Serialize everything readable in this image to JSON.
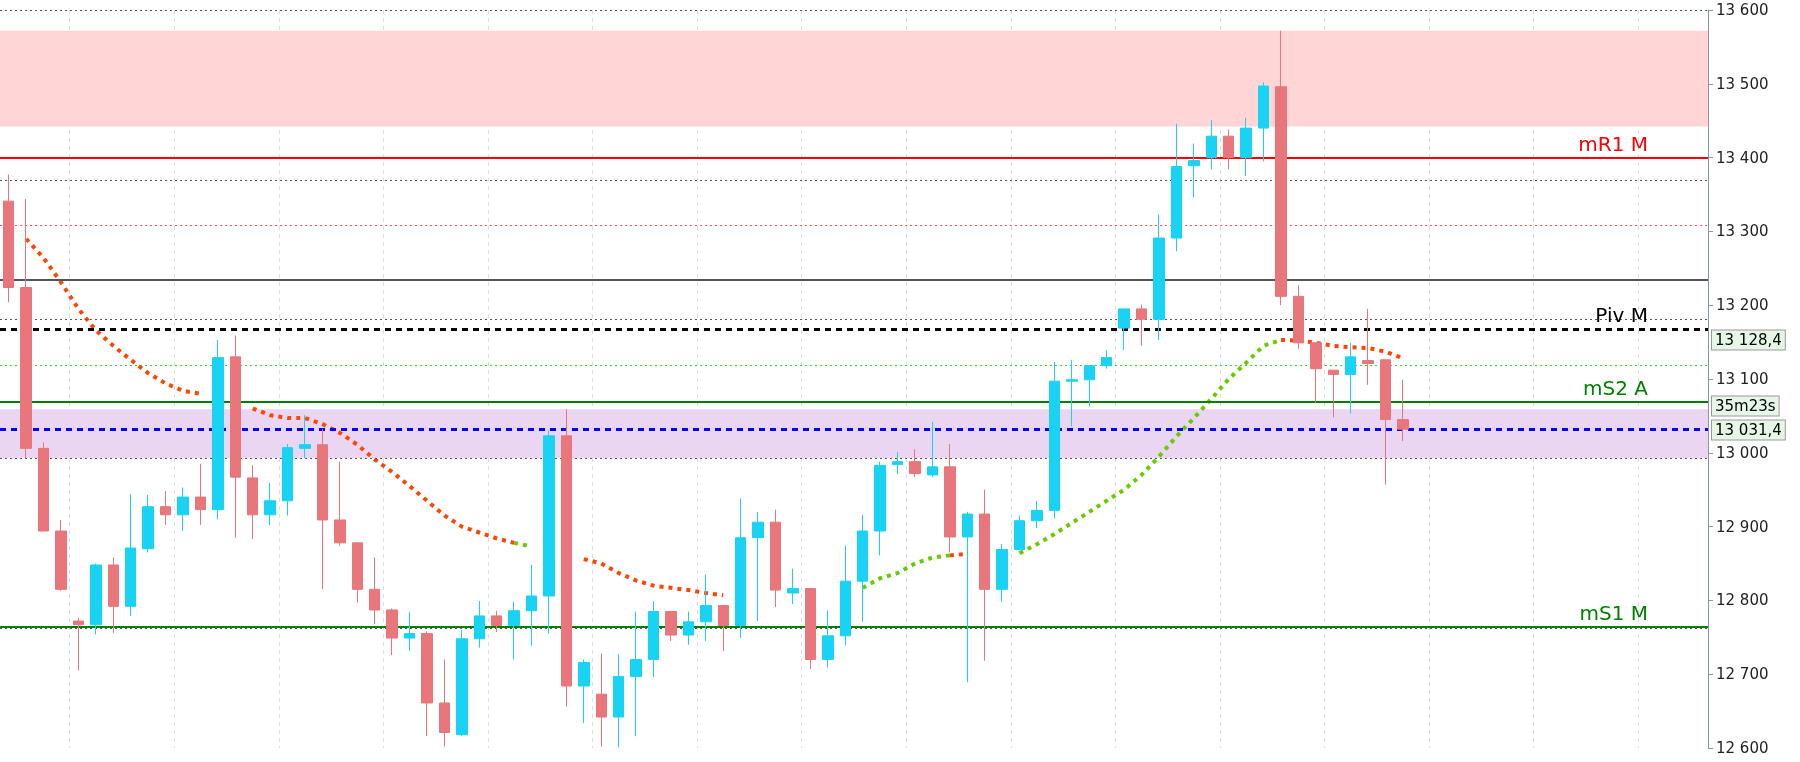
{
  "chart_data": {
    "type": "candlestick",
    "categories": [
      null,
      null,
      null,
      null,
      null,
      null,
      null,
      null,
      null,
      null,
      null,
      null,
      null,
      null,
      null,
      null,
      null,
      null,
      null,
      null,
      null,
      null,
      null,
      null,
      null,
      null,
      null,
      null,
      null,
      null,
      null,
      null,
      null,
      null,
      null,
      null,
      null,
      null,
      null,
      null,
      null,
      null,
      null,
      null,
      null,
      null,
      null,
      null,
      null,
      null,
      null,
      null,
      null,
      null,
      null,
      null,
      null,
      null,
      null,
      null,
      null,
      null,
      null,
      null,
      null,
      null,
      null,
      null,
      null,
      null,
      null,
      null,
      null,
      null,
      null,
      null,
      null,
      null,
      null,
      null,
      null,
      null,
      null,
      null,
      null,
      null,
      null,
      null,
      null,
      null,
      null,
      null,
      null,
      null,
      null,
      null,
      null,
      null
    ],
    "series": [
      {
        "type": "candlestick",
        "ohlc": [
          [
            13341,
            13377,
            13204,
            13224
          ],
          [
            13224,
            13344,
            12993,
            13006
          ],
          [
            13006,
            13014,
            12894,
            12894
          ],
          [
            12894,
            12909,
            12813,
            12815
          ],
          [
            12772,
            12776,
            12705,
            12767
          ],
          [
            12767,
            12850,
            12754,
            12848
          ],
          [
            12848,
            12858,
            12756,
            12792
          ],
          [
            12792,
            12944,
            12779,
            12871
          ],
          [
            12870,
            12943,
            12865,
            12927
          ],
          [
            12927,
            12948,
            12902,
            12916
          ],
          [
            12916,
            12953,
            12894,
            12940
          ],
          [
            12940,
            12985,
            12902,
            12923
          ],
          [
            12923,
            13153,
            12910,
            13129
          ],
          [
            13130,
            13159,
            12885,
            12967
          ],
          [
            12966,
            12983,
            12883,
            12916
          ],
          [
            12916,
            12959,
            12902,
            12935
          ],
          [
            12935,
            13012,
            12915,
            13007
          ],
          [
            13006,
            13051,
            12993,
            13011
          ],
          [
            13011,
            13032,
            12815,
            12909
          ],
          [
            12909,
            12988,
            12874,
            12878
          ],
          [
            12878,
            12878,
            12797,
            12815
          ],
          [
            12815,
            12858,
            12768,
            12787
          ],
          [
            12787,
            12789,
            12726,
            12749
          ],
          [
            12749,
            12784,
            12732,
            12755
          ],
          [
            12755,
            12758,
            12616,
            12661
          ],
          [
            12661,
            12720,
            12602,
            12621
          ],
          [
            12618,
            12760,
            12616,
            12748
          ],
          [
            12748,
            12799,
            12736,
            12779
          ],
          [
            12779,
            12786,
            12757,
            12766
          ],
          [
            12766,
            12798,
            12720,
            12786
          ],
          [
            12786,
            12848,
            12739,
            12806
          ],
          [
            12806,
            13030,
            12755,
            13023
          ],
          [
            13023,
            13059,
            12656,
            12684
          ],
          [
            12684,
            12720,
            12634,
            12716
          ],
          [
            12673,
            12728,
            12602,
            12642
          ],
          [
            12642,
            12727,
            12601,
            12697
          ],
          [
            12697,
            12785,
            12616,
            12720
          ],
          [
            12720,
            12799,
            12696,
            12785
          ],
          [
            12785,
            12785,
            12745,
            12753
          ],
          [
            12753,
            12785,
            12740,
            12771
          ],
          [
            12771,
            12835,
            12745,
            12793
          ],
          [
            12793,
            12793,
            12731,
            12766
          ],
          [
            12766,
            12938,
            12749,
            12885
          ],
          [
            12885,
            12920,
            12772,
            12906
          ],
          [
            12906,
            12923,
            12791,
            12814
          ],
          [
            12810,
            12843,
            12795,
            12816
          ],
          [
            12816,
            12816,
            12707,
            12720
          ],
          [
            12720,
            12786,
            12709,
            12752
          ],
          [
            12752,
            12874,
            12739,
            12826
          ],
          [
            12826,
            12916,
            12771,
            12894
          ],
          [
            12894,
            12988,
            12861,
            12983
          ],
          [
            12984,
            13001,
            12971,
            12988
          ],
          [
            12988,
            13005,
            12967,
            12972
          ],
          [
            12970,
            13042,
            12967,
            12981
          ],
          [
            12981,
            13012,
            12865,
            12886
          ],
          [
            12886,
            12920,
            12689,
            12917
          ],
          [
            12917,
            12950,
            12718,
            12815
          ],
          [
            12815,
            12876,
            12798,
            12869
          ],
          [
            12869,
            12915,
            12869,
            12908
          ],
          [
            12908,
            12935,
            12898,
            12922
          ],
          [
            12922,
            13123,
            12911,
            13097
          ],
          [
            13097,
            13126,
            13036,
            13099
          ],
          [
            13099,
            13118,
            13063,
            13118
          ],
          [
            13118,
            13139,
            13114,
            13129
          ],
          [
            13169,
            13195,
            13139,
            13195
          ],
          [
            13195,
            13201,
            13145,
            13181
          ],
          [
            13181,
            13323,
            13153,
            13291
          ],
          [
            13291,
            13446,
            13273,
            13388
          ],
          [
            13389,
            13419,
            13346,
            13396
          ],
          [
            13400,
            13451,
            13384,
            13429
          ],
          [
            13429,
            13438,
            13384,
            13400
          ],
          [
            13400,
            13454,
            13375,
            13440
          ],
          [
            13440,
            13502,
            13395,
            13497
          ],
          [
            13496,
            13572,
            13200,
            13212
          ],
          [
            13212,
            13227,
            13141,
            13149
          ],
          [
            13149,
            13149,
            13068,
            13114
          ],
          [
            13112,
            13112,
            13048,
            13106
          ],
          [
            13106,
            13149,
            13053,
            13130
          ],
          [
            13125,
            13195,
            13092,
            13121
          ],
          [
            13126,
            13126,
            12957,
            13045
          ],
          [
            13045,
            13099,
            13016,
            13032
          ],
          null,
          null,
          null,
          null,
          null,
          null,
          null,
          null,
          null,
          null,
          null,
          null,
          null,
          null,
          null,
          null,
          null
        ],
        "colors": [
          "#e8767a",
          "#e8767a",
          "#e8767a",
          "#e8767a",
          "#e8767a",
          "#19d3f5",
          "#e8767a",
          "#19d3f5",
          "#19d3f5",
          "#e8767a",
          "#19d3f5",
          "#e8767a",
          "#19d3f5",
          "#e8767a",
          "#e8767a",
          "#19d3f5",
          "#19d3f5",
          "#19d3f5",
          "#e8767a",
          "#e8767a",
          "#e8767a",
          "#e8767a",
          "#e8767a",
          "#19d3f5",
          "#e8767a",
          "#e8767a",
          "#19d3f5",
          "#19d3f5",
          "#e8767a",
          "#19d3f5",
          "#19d3f5",
          "#19d3f5",
          "#e8767a",
          "#19d3f5",
          "#e8767a",
          "#19d3f5",
          "#19d3f5",
          "#19d3f5",
          "#e8767a",
          "#19d3f5",
          "#19d3f5",
          "#e8767a",
          "#19d3f5",
          "#19d3f5",
          "#e8767a",
          "#19d3f5",
          "#e8767a",
          "#19d3f5",
          "#19d3f5",
          "#19d3f5",
          "#19d3f5",
          "#19d3f5",
          "#e8767a",
          "#19d3f5",
          "#e8767a",
          "#19d3f5",
          "#e8767a",
          "#19d3f5",
          "#19d3f5",
          "#19d3f5",
          "#19d3f5",
          "#19d3f5",
          "#19d3f5",
          "#19d3f5",
          "#19d3f5",
          "#e8767a",
          "#19d3f5",
          "#19d3f5",
          "#19d3f5",
          "#19d3f5",
          "#e8767a",
          "#19d3f5",
          "#19d3f5",
          "#e8767a",
          "#e8767a",
          "#e8767a",
          "#e8767a",
          "#19d3f5",
          "#e8767a",
          "#e8767a",
          "#e8767a",
          null,
          null,
          null,
          null,
          null,
          null,
          null,
          null,
          null,
          null,
          null,
          null,
          null,
          null,
          null,
          null,
          null
        ]
      },
      {
        "type": "line",
        "color": "#ff4500",
        "line_style": "dotted",
        "values": [
          null,
          13290,
          13264,
          13231,
          13195,
          13166,
          13145,
          13126,
          13108,
          13094,
          13084,
          13080,
          null,
          null,
          13060,
          13051,
          13047,
          13047,
          13039,
          13027,
          13011,
          12991,
          12974,
          12955,
          12935,
          12915,
          12900,
          12892,
          12884,
          12878,
          null,
          null,
          null,
          12856,
          12850,
          12837,
          12827,
          12820,
          12817,
          12814,
          12810,
          12807,
          null,
          null,
          null,
          null,
          null,
          null,
          null,
          null,
          null,
          null,
          null,
          null,
          12861,
          12863,
          null,
          null,
          null,
          null,
          null,
          null,
          null,
          null,
          null,
          null,
          null,
          null,
          null,
          null,
          null,
          null,
          null,
          13153,
          13152,
          13149,
          13145,
          13143,
          13142,
          13137,
          13128,
          null,
          null,
          null,
          null,
          null,
          null,
          null,
          null,
          null,
          null,
          null,
          null,
          null,
          null,
          null,
          null,
          null
        ]
      },
      {
        "type": "line",
        "color": "#66cc00",
        "line_style": "dotted",
        "values": [
          null,
          null,
          null,
          null,
          null,
          null,
          null,
          null,
          null,
          null,
          null,
          null,
          null,
          null,
          null,
          null,
          null,
          null,
          null,
          null,
          null,
          null,
          null,
          null,
          null,
          null,
          null,
          null,
          null,
          12878,
          12873,
          null,
          null,
          null,
          null,
          null,
          null,
          null,
          null,
          null,
          null,
          null,
          null,
          null,
          null,
          null,
          null,
          null,
          null,
          12817,
          12830,
          12837,
          12850,
          12858,
          12861,
          null,
          null,
          null,
          12864,
          12876,
          12890,
          12905,
          12920,
          12935,
          12950,
          12970,
          12995,
          13022,
          13047,
          13073,
          13100,
          13122,
          13145,
          13153,
          null,
          null,
          null,
          null,
          null,
          null,
          null,
          null,
          null,
          null,
          null,
          null,
          null,
          null,
          null,
          null,
          null,
          null,
          null,
          null,
          null,
          null,
          null,
          null
        ]
      }
    ],
    "ylim": [
      12600,
      13600
    ],
    "yticks": [
      {
        "value": 12600,
        "label": "12 600"
      },
      {
        "value": 12700,
        "label": "12 700"
      },
      {
        "value": 12800,
        "label": "12 800"
      },
      {
        "value": 12900,
        "label": "12 900"
      },
      {
        "value": 13000,
        "label": "13 000"
      },
      {
        "value": 13100,
        "label": "13 100"
      },
      {
        "value": 13200,
        "label": "13 200"
      },
      {
        "value": 13300,
        "label": "13 300"
      },
      {
        "value": 13400,
        "label": "13 400"
      },
      {
        "value": 13500,
        "label": "13 500"
      },
      {
        "value": 13600,
        "label": "13 600"
      }
    ],
    "ref_lines": [
      {
        "axis": "y",
        "value": 13600,
        "color": "#555555",
        "line_style": "dotted"
      },
      {
        "axis": "y",
        "value": 13369,
        "color": "#555555",
        "line_style": "dotted"
      },
      {
        "axis": "y",
        "value": 13181,
        "color": "#555555",
        "line_style": "dotted"
      },
      {
        "axis": "y",
        "value": 12993,
        "color": "#555555",
        "line_style": "dotted"
      },
      {
        "axis": "y",
        "value": 12762,
        "color": "#555555",
        "line_style": "dotted"
      },
      {
        "axis": "y",
        "value": 13309,
        "color": "#ff4d4d",
        "line_style": "dotted"
      },
      {
        "axis": "y",
        "value": 13235,
        "color": "#555555",
        "line_style": "solid"
      },
      {
        "axis": "y",
        "value": 13118,
        "color": "#33cc33",
        "line_style": "dotted"
      },
      {
        "axis": "y",
        "value": 13031.4,
        "color": "#0000ff",
        "line_style": "dashed"
      },
      {
        "axis": "y",
        "value": 13400,
        "label": "mR1 M",
        "color": "#ff0000",
        "line_style": "solid"
      },
      {
        "axis": "y",
        "value": 13168,
        "label": "Piv M",
        "color": "#000000",
        "line_style": "dashed"
      },
      {
        "axis": "y",
        "value": 13069,
        "label": "mS2 A",
        "color": "#008000",
        "line_style": "solid"
      },
      {
        "axis": "y",
        "value": 12764,
        "label": "mS1 M",
        "color": "#008000",
        "line_style": "solid"
      }
    ],
    "bands": [
      {
        "axis": "y",
        "from": 13442,
        "to": 13572,
        "color": "#ffd5d5"
      },
      {
        "axis": "y",
        "from": 12993,
        "to": 13059,
        "color": "#ead6f3"
      }
    ],
    "annotations": [
      "13 128,4",
      "35m23s",
      "13 031,4"
    ],
    "grid": "x",
    "tick_labels": "y",
    "marker": "none"
  }
}
